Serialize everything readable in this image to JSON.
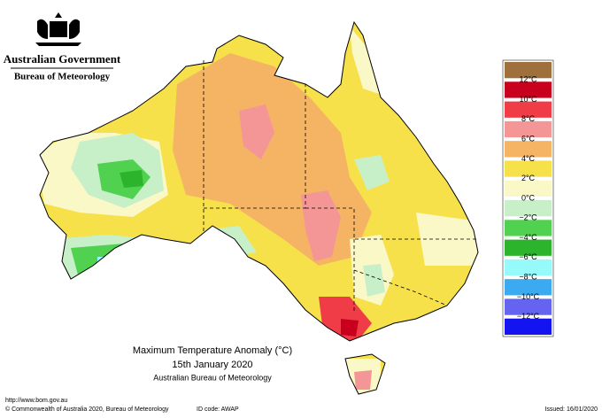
{
  "header": {
    "agency": "Australian Government",
    "bureau": "Bureau of Meteorology"
  },
  "map": {
    "title": "Maximum Temperature Anomaly (°C)",
    "date": "15th January 2020",
    "source": "Australian Bureau of Meteorology"
  },
  "legend": {
    "labels": [
      "12°C",
      "10°C",
      "8°C",
      "6°C",
      "4°C",
      "2°C",
      "0°C",
      "−2°C",
      "−4°C",
      "−6°C",
      "−8°C",
      "−10°C",
      "−12°C"
    ],
    "colors": [
      "#a0703c",
      "#c8001e",
      "#f03c46",
      "#f59696",
      "#f5b464",
      "#f7e14b",
      "#fbf8c8",
      "#c8f0c8",
      "#50d250",
      "#2db42d",
      "#96fafa",
      "#3caaf0",
      "#6464f0",
      "#1414f0"
    ]
  },
  "footer": {
    "url": "http://www.bom.gov.au",
    "copyright": "© Commonwealth of Australia 2020, Bureau of Meteorology",
    "id_code": "ID code: AWAP",
    "issued": "Issued: 16/01/2020"
  }
}
